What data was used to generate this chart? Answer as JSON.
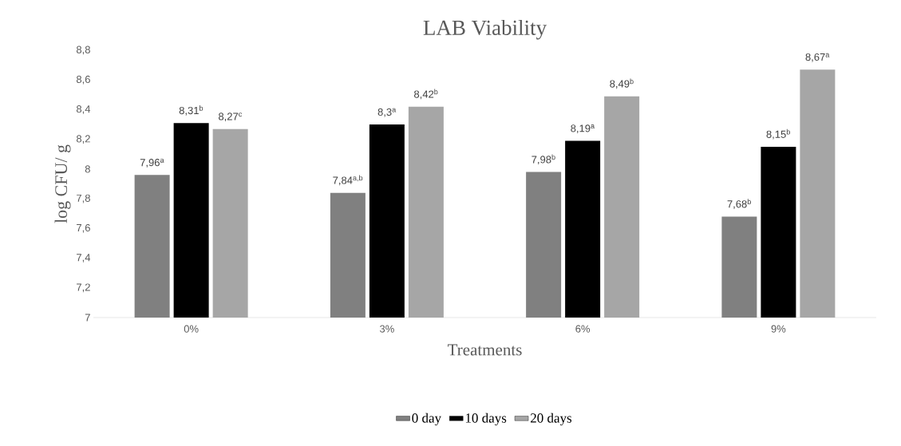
{
  "chart_data": {
    "type": "bar",
    "title": "LAB Viability",
    "xlabel": "Treatments",
    "ylabel": "log CFU/ g",
    "categories": [
      "0%",
      "3%",
      "6%",
      "9%"
    ],
    "series": [
      {
        "name": "0 day",
        "color": "#808080",
        "values": [
          7.96,
          7.84,
          7.98,
          7.68
        ],
        "value_labels": [
          "7,96$^{a}$",
          "7,84$^{a,b}$",
          "7,98$^{b}$",
          "7,68$^{b}$"
        ]
      },
      {
        "name": "10 days",
        "color": "#000000",
        "values": [
          8.31,
          8.3,
          8.19,
          8.15
        ],
        "value_labels": [
          "8,31$^{b}$",
          "8,3$^{a}$",
          "8,19$^{a}$",
          "8,15$^{b}$"
        ]
      },
      {
        "name": "20 days",
        "color": "#a6a6a6",
        "values": [
          8.27,
          8.42,
          8.49,
          8.67
        ],
        "value_labels": [
          "8,27$^{c}$",
          "8,42$^{b}$",
          "8,49$^{b}$",
          "8,67$^{a}$"
        ]
      }
    ],
    "ylim": [
      7,
      8.8
    ],
    "yticks": [
      7,
      {
        "value": 7.2,
        "label": "7,2"
      },
      {
        "value": 7.4,
        "label": "7,4"
      },
      {
        "value": 7.6,
        "label": "7,6"
      },
      {
        "value": 7.8,
        "label": "7,8"
      },
      8,
      {
        "value": 8.2,
        "label": "8,2"
      },
      {
        "value": 8.4,
        "label": "8,4"
      },
      {
        "value": 8.6,
        "label": "8,6"
      },
      {
        "value": 8.8,
        "label": "8,8"
      }
    ],
    "legend": "bottom"
  }
}
